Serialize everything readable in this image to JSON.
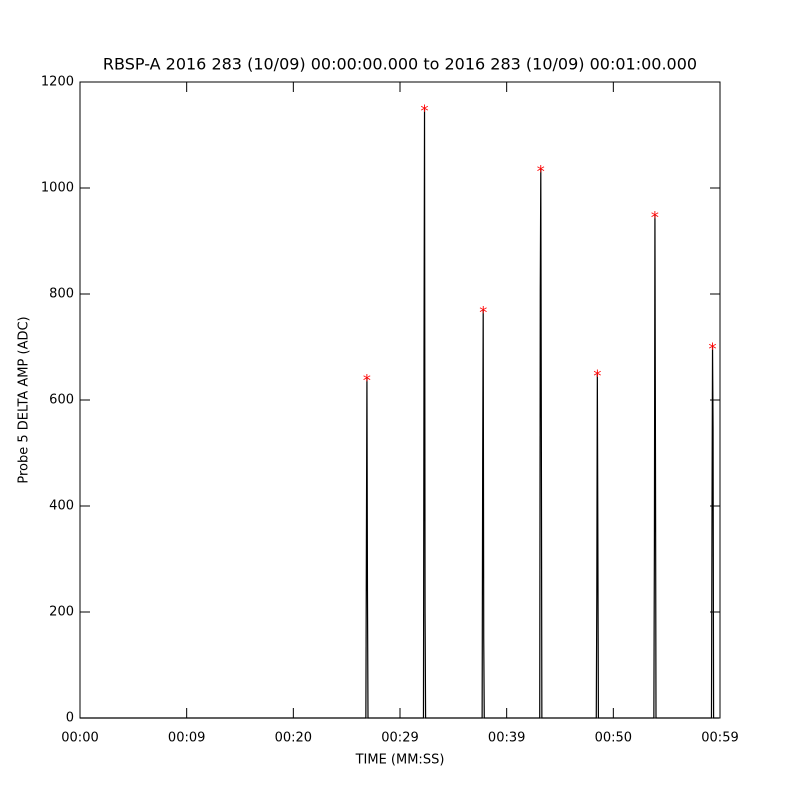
{
  "chart_data": {
    "type": "line",
    "title": "RBSP-A 2016 283 (10/09) 00:00:00.000 to 2016 283 (10/09) 00:01:00.000",
    "xlabel": "TIME (MM:SS)",
    "ylabel": "Probe 5 DELTA AMP (ADC)",
    "color": "#000000",
    "x": [
      0,
      26.8,
      26.85,
      26.9,
      26.95,
      27.0,
      32.2,
      32.25,
      32.3,
      32.35,
      32.4,
      37.7,
      37.75,
      37.8,
      37.85,
      37.9,
      43.1,
      43.15,
      43.2,
      43.25,
      43.3,
      48.4,
      48.45,
      48.5,
      48.55,
      48.6,
      53.8,
      53.85,
      53.9,
      53.95,
      54.0,
      59.2,
      59.25,
      59.3,
      59.35,
      59.4,
      59.9
    ],
    "values": [
      0,
      0,
      330,
      643,
      240,
      0,
      0,
      680,
      1152,
      200,
      0,
      0,
      480,
      772,
      150,
      0,
      0,
      805,
      1038,
      560,
      0,
      0,
      230,
      652,
      335,
      0,
      0,
      330,
      951,
      500,
      0,
      0,
      385,
      703,
      545,
      0,
      0
    ],
    "peaks": {
      "color": "#ff0000",
      "marker": "*",
      "x": [
        26.9,
        32.3,
        37.8,
        43.2,
        48.5,
        53.9,
        59.3
      ],
      "values": [
        643,
        1152,
        772,
        1038,
        652,
        951,
        703
      ]
    },
    "xlim": [
      0,
      60
    ],
    "ylim": [
      0,
      1200
    ],
    "xticks": [
      {
        "value": 0,
        "label": "00:00"
      },
      {
        "value": 10,
        "label": "00:09"
      },
      {
        "value": 20,
        "label": "00:20"
      },
      {
        "value": 30,
        "label": "00:29"
      },
      {
        "value": 40,
        "label": "00:39"
      },
      {
        "value": 50,
        "label": "00:50"
      },
      {
        "value": 60,
        "label": "00:59"
      }
    ],
    "yticks": [
      0,
      200,
      400,
      600,
      800,
      1000,
      1200
    ]
  }
}
